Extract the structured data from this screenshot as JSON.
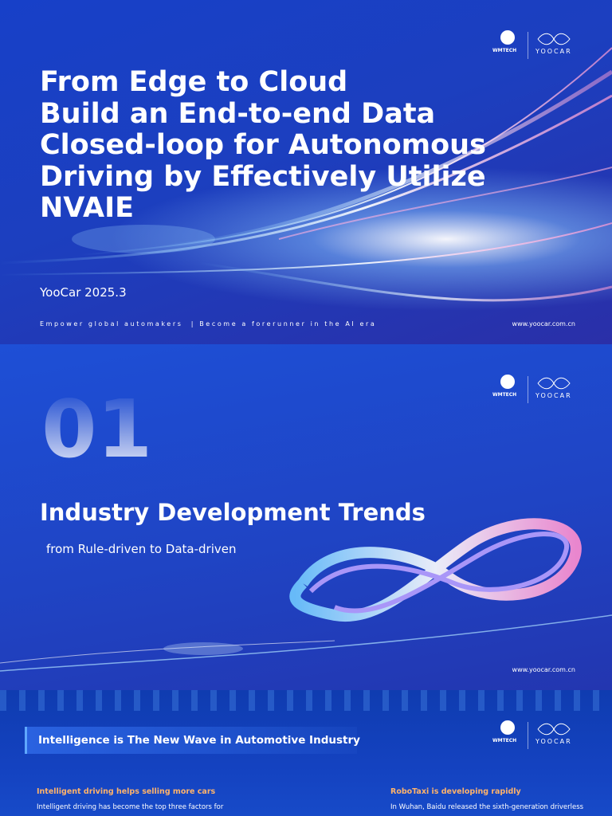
{
  "slides": [
    {
      "logos": [
        "WMTECH",
        "YOOCAR"
      ],
      "title_lines": [
        "From Edge to Cloud",
        "Build an End-to-end Data",
        "Closed-loop for Autonomous",
        "Driving by Effectively Utilize",
        "NVAIE"
      ],
      "subtitle": "YooCar 2025.3",
      "tagline": "Empower global automakers  | Become a forerunner in the AI era",
      "url": "www.yoocar.com.cn"
    },
    {
      "logos": [
        "WMTECH",
        "YOOCAR"
      ],
      "number": "01",
      "title": "Industry Development Trends",
      "subtitle": "from Rule-driven to Data-driven",
      "url": "www.yoocar.com.cn"
    },
    {
      "logos": [
        "WMTECH",
        "YOOCAR"
      ],
      "banner": "Intelligence is The New Wave in Automotive Industry",
      "columns": [
        {
          "heading": "Intelligent driving helps selling more cars",
          "text": "Intelligent driving has become the top three factors for"
        },
        {
          "heading": "RoboTaxi is developing rapidly",
          "text": "In Wuhan, Baidu released the sixth-generation driverless"
        }
      ]
    }
  ]
}
